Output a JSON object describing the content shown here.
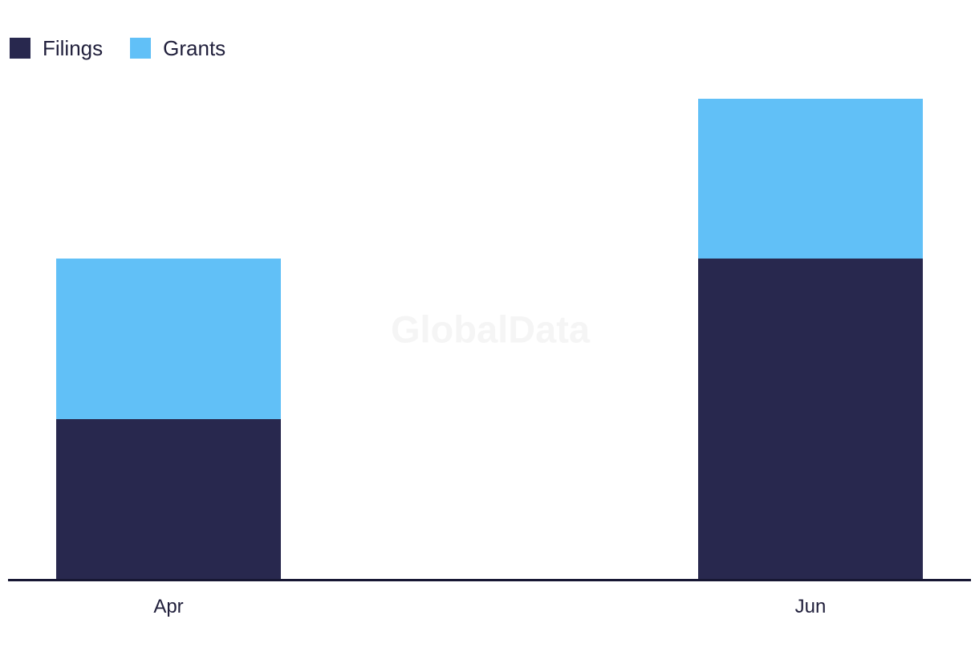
{
  "chart_data": {
    "type": "bar",
    "stacked": true,
    "categories": [
      "Apr",
      "Jun"
    ],
    "series": [
      {
        "name": "Filings",
        "color": "#28284e",
        "values": [
          1,
          2
        ]
      },
      {
        "name": "Grants",
        "color": "#61c0f7",
        "values": [
          1,
          1
        ]
      }
    ],
    "title": "",
    "xlabel": "",
    "ylabel": "",
    "ylim": [
      0,
      3.12
    ],
    "y_axis_visible": false,
    "grid": false,
    "legend_position": "top-left",
    "watermark": "GlobalData",
    "note": "No numeric y-axis is shown; values are relative units estimated from bar pixel heights (1 unit ≈ 199 px). Filings stacked on bottom, Grants on top."
  },
  "colors": {
    "filings": "#28284e",
    "grants": "#61c0f7",
    "axis_line": "#171733",
    "label_text": "#21203c",
    "watermark": "#f5f5f5",
    "background": "#ffffff"
  }
}
